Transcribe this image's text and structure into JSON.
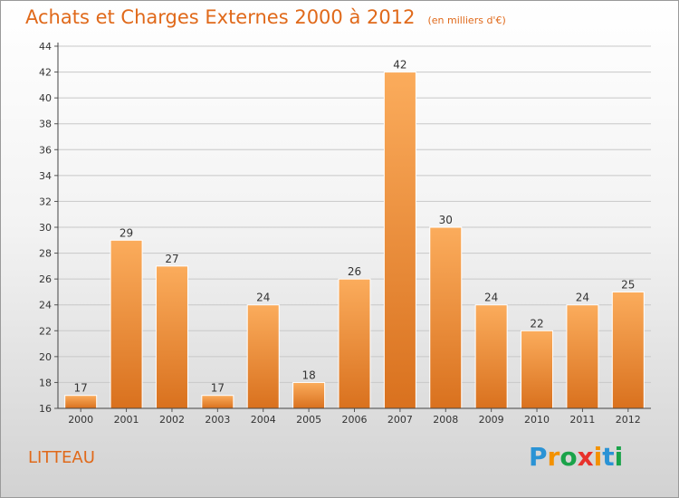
{
  "chart_data": {
    "type": "bar",
    "title": "Achats et Charges Externes 2000 à 2012",
    "subtitle": "(en milliers d'€)",
    "categories": [
      "2000",
      "2001",
      "2002",
      "2003",
      "2004",
      "2005",
      "2006",
      "2007",
      "2008",
      "2009",
      "2010",
      "2011",
      "2012"
    ],
    "values": [
      17,
      29,
      27,
      17,
      24,
      18,
      26,
      42,
      30,
      24,
      22,
      24,
      25
    ],
    "ylim": [
      16,
      44
    ],
    "yticks": [
      16,
      18,
      20,
      22,
      24,
      26,
      28,
      30,
      32,
      34,
      36,
      38,
      40,
      42,
      44
    ],
    "xlabel": "",
    "ylabel": "",
    "grid": true,
    "bar_color": "#f08b2e",
    "title_color": "#e0691a"
  },
  "commune": "LITTEAU",
  "logo": {
    "text": "Proxiti",
    "letters": [
      "P",
      "r",
      "o",
      "x",
      "i",
      "t",
      "i"
    ],
    "colors": [
      "#2a93d5",
      "#f39200",
      "#1aa34a",
      "#e8322c",
      "#f39200",
      "#2a93d5",
      "#1aa34a"
    ]
  }
}
